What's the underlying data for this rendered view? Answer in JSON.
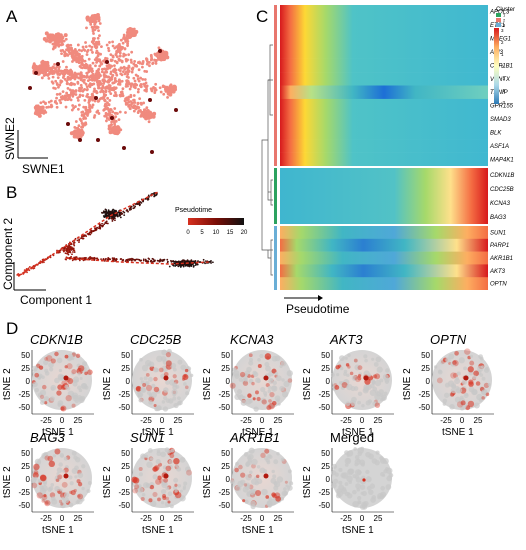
{
  "panels": {
    "A": {
      "label": "A",
      "xlabel": "SWNE1",
      "ylabel": "SWNE2"
    },
    "B": {
      "label": "B",
      "xlabel": "Component 1",
      "ylabel": "Component 2",
      "legend_title": "Pseudotime",
      "legend_ticks": [
        "0",
        "5",
        "10",
        "15",
        "20"
      ]
    },
    "C": {
      "label": "C",
      "xlabel": "Pseudotime",
      "cluster_legend_title": "Cluster",
      "cluster_legend_items": [
        "1",
        "2",
        "3"
      ],
      "color_scale_ticks": [
        "3",
        "2",
        "1",
        "0",
        "-1",
        "-2",
        "-3"
      ],
      "cluster1_genes": [
        "APOL3",
        "ETS1",
        "MPEG1",
        "ABI3",
        "CYP1B1",
        "VENTX",
        "TXNIP",
        "GPR155",
        "SMAD3",
        "BLK",
        "ASF1A",
        "MAP4K1"
      ],
      "cluster2_genes": [
        "CDKN1B",
        "CDC25B",
        "KCNA3",
        "BAG3"
      ],
      "cluster3_genes": [
        "SUN1",
        "PARP1",
        "AKR1B1",
        "AKT3",
        "OPTN"
      ]
    },
    "D": {
      "label": "D",
      "xlabel": "tSNE 1",
      "ylabel": "tSNE 2",
      "xticks": [
        "-25",
        "0",
        "25"
      ],
      "yticks": [
        "50",
        "25",
        "0",
        "-25",
        "-50"
      ],
      "plots": [
        {
          "title": "CDKN1B",
          "italic": true
        },
        {
          "title": "CDC25B",
          "italic": true
        },
        {
          "title": "KCNA3",
          "italic": true
        },
        {
          "title": "AKT3",
          "italic": true
        },
        {
          "title": "OPTN",
          "italic": true
        },
        {
          "title": "BAG3",
          "italic": true
        },
        {
          "title": "SUN1",
          "italic": true
        },
        {
          "title": "AKR1B1",
          "italic": true
        },
        {
          "title": "Merged",
          "italic": false
        }
      ]
    }
  },
  "colors": {
    "scatter_pink": "#f08a7e",
    "cluster_green": "#2ca25f",
    "cluster_red": "#e8776e",
    "cluster_blue": "#6aaed6",
    "tsne_grey": "#cfcfcf",
    "tsne_red": "#d7301f"
  }
}
